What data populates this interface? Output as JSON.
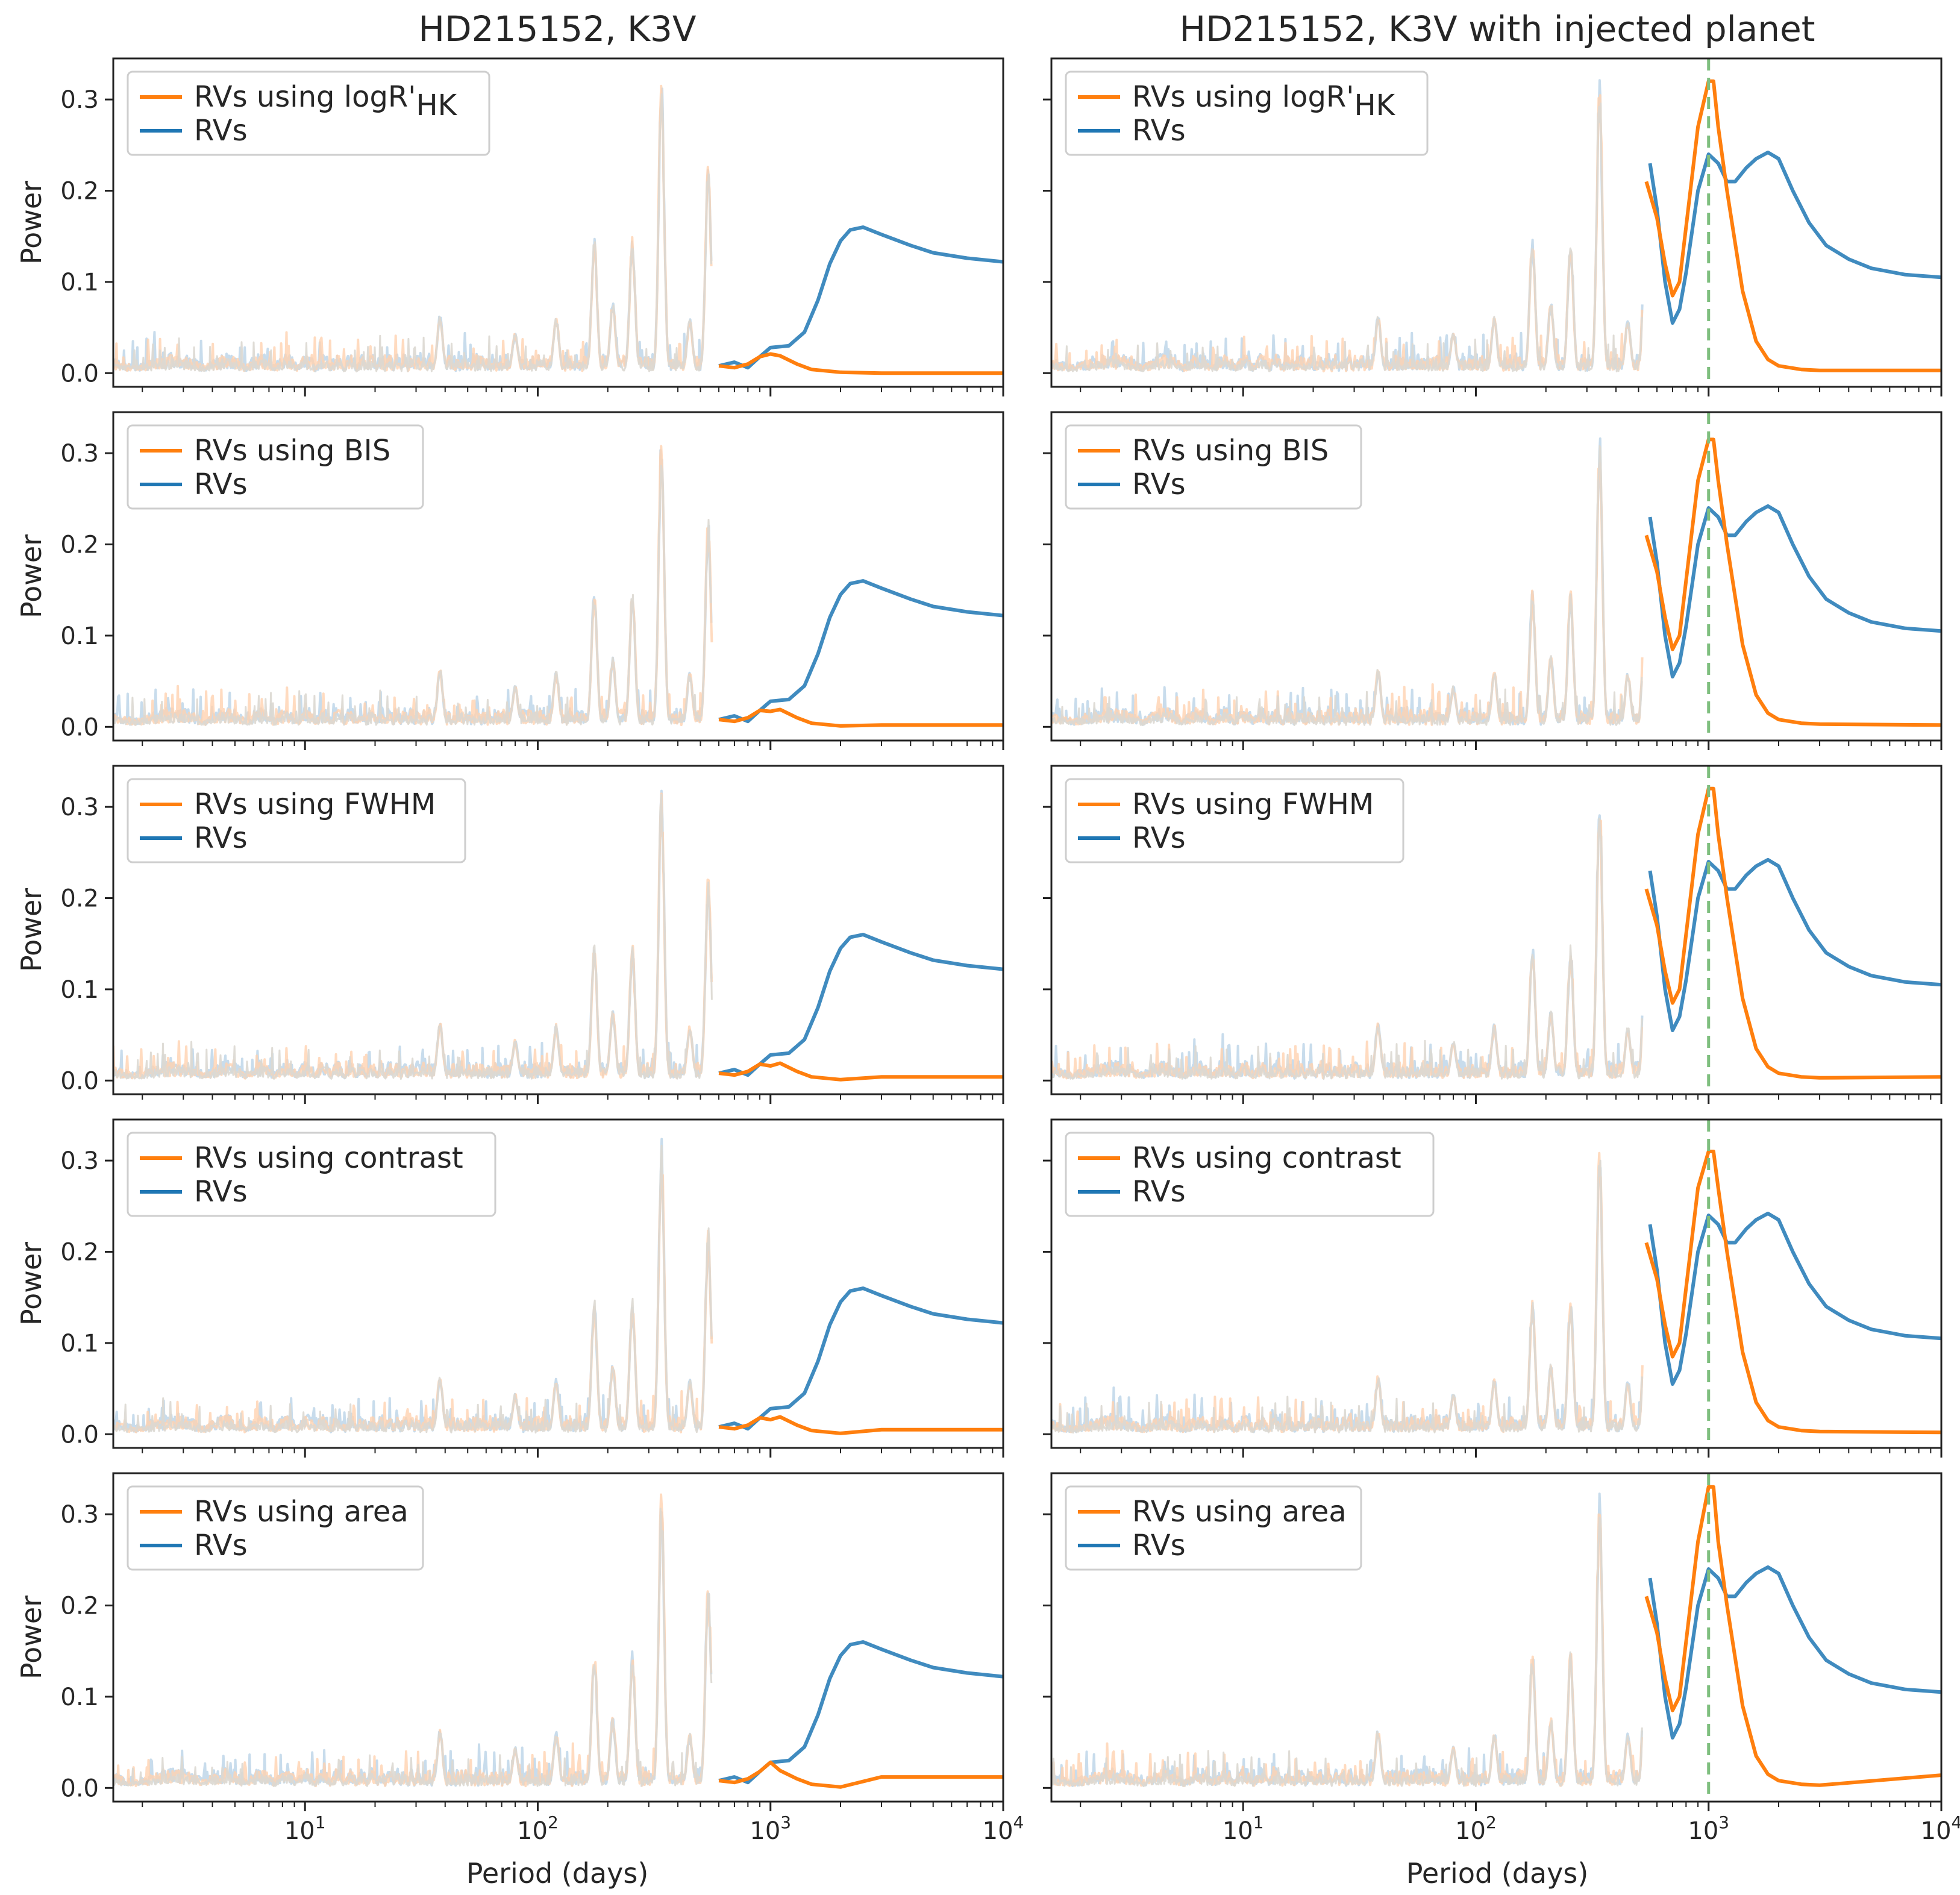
{
  "colors": {
    "orange": "#ff7f0e",
    "blue": "#1f77b4",
    "faded_orange": "#ffd2b0",
    "faded_blue": "#c8dcec",
    "grey_noise": "#dcd8d2",
    "injected_line": "#7fbf7f"
  },
  "chart_data": {
    "type": "line",
    "layout": "5 rows x 2 columns, shared log-scale x axis",
    "columns": [
      {
        "title": "HD215152, K3V",
        "injected_planet": false
      },
      {
        "title": "HD215152, K3V with injected planet",
        "injected_planet": true,
        "injected_period_days": 1000
      }
    ],
    "xlabel": "Period (days)",
    "ylabel": "Power",
    "xscale": "log",
    "xlim": [
      1.5,
      10000
    ],
    "ylim": [
      -0.015,
      0.345
    ],
    "xticks": [
      {
        "value": 10,
        "base": "10",
        "exp": "1"
      },
      {
        "value": 100,
        "base": "10",
        "exp": "2"
      },
      {
        "value": 1000,
        "base": "10",
        "exp": "3"
      },
      {
        "value": 10000,
        "base": "10",
        "exp": "4"
      }
    ],
    "yticks": [
      {
        "value": 0.0,
        "label": "0.0"
      },
      {
        "value": 0.1,
        "label": "0.1"
      },
      {
        "value": 0.2,
        "label": "0.2"
      },
      {
        "value": 0.3,
        "label": "0.3"
      }
    ],
    "rows": [
      {
        "indicator_label": "RVs using logR'",
        "indicator_sub": "HK",
        "rvs_label": "RVs",
        "tail_left": 0.0,
        "tail_right": 0.003,
        "peak_right": 0.32,
        "bump_left": 0.021
      },
      {
        "indicator_label": "RVs using BIS",
        "indicator_sub": "",
        "rvs_label": "RVs",
        "tail_left": 0.002,
        "tail_right": 0.002,
        "peak_right": 0.315,
        "bump_left": 0.017
      },
      {
        "indicator_label": "RVs using FWHM",
        "indicator_sub": "",
        "rvs_label": "RVs",
        "tail_left": 0.004,
        "tail_right": 0.004,
        "peak_right": 0.32,
        "bump_left": 0.016
      },
      {
        "indicator_label": "RVs using contrast",
        "indicator_sub": "",
        "rvs_label": "RVs",
        "tail_left": 0.005,
        "tail_right": 0.002,
        "peak_right": 0.31,
        "bump_left": 0.016
      },
      {
        "indicator_label": "RVs using area",
        "indicator_sub": "",
        "rvs_label": "RVs",
        "tail_left": 0.012,
        "tail_right": 0.014,
        "peak_right": 0.33,
        "bump_left": 0.028
      }
    ],
    "series_left_rvs": {
      "name": "RVs",
      "x": [
        600,
        700,
        800,
        900,
        1000,
        1200,
        1400,
        1600,
        1800,
        2000,
        2200,
        2500,
        3000,
        4000,
        5000,
        7000,
        10000
      ],
      "y": [
        0.008,
        0.012,
        0.006,
        0.018,
        0.028,
        0.03,
        0.045,
        0.08,
        0.12,
        0.145,
        0.157,
        0.16,
        0.152,
        0.14,
        0.132,
        0.126,
        0.122
      ]
    },
    "series_left_indicator": {
      "name": "RVs using indicator",
      "x": [
        600,
        700,
        800,
        900,
        1000,
        1100,
        1300,
        1500,
        2000,
        3000,
        10000
      ],
      "y": [
        0.008,
        0.006,
        0.01,
        0.018,
        0.021,
        0.019,
        0.01,
        0.004,
        0.001,
        0.001,
        0.001
      ]
    },
    "series_right_rvs": {
      "name": "RVs",
      "x": [
        560,
        600,
        650,
        700,
        750,
        800,
        900,
        1000,
        1100,
        1200,
        1300,
        1450,
        1600,
        1800,
        2000,
        2300,
        2700,
        3200,
        4000,
        5000,
        7000,
        10000
      ],
      "y": [
        0.23,
        0.18,
        0.1,
        0.055,
        0.07,
        0.11,
        0.2,
        0.24,
        0.23,
        0.21,
        0.21,
        0.225,
        0.235,
        0.242,
        0.235,
        0.2,
        0.165,
        0.14,
        0.125,
        0.115,
        0.108,
        0.105
      ]
    },
    "series_right_indicator": {
      "name": "RVs using indicator",
      "x": [
        540,
        600,
        650,
        700,
        750,
        800,
        900,
        1000,
        1050,
        1100,
        1200,
        1400,
        1600,
        1800,
        2000,
        2500,
        3000,
        10000
      ],
      "y": [
        0.21,
        0.17,
        0.12,
        0.085,
        0.1,
        0.16,
        0.27,
        0.32,
        0.31,
        0.27,
        0.2,
        0.09,
        0.035,
        0.015,
        0.008,
        0.004,
        0.003,
        0.003
      ]
    },
    "noise_peaks": [
      {
        "period": 38,
        "power": 0.065
      },
      {
        "period": 80,
        "power": 0.045
      },
      {
        "period": 120,
        "power": 0.062
      },
      {
        "period": 175,
        "power": 0.15
      },
      {
        "period": 210,
        "power": 0.078
      },
      {
        "period": 255,
        "power": 0.15
      },
      {
        "period": 340,
        "power": 0.325
      },
      {
        "period": 450,
        "power": 0.06
      },
      {
        "period": 540,
        "power": 0.23
      }
    ]
  }
}
